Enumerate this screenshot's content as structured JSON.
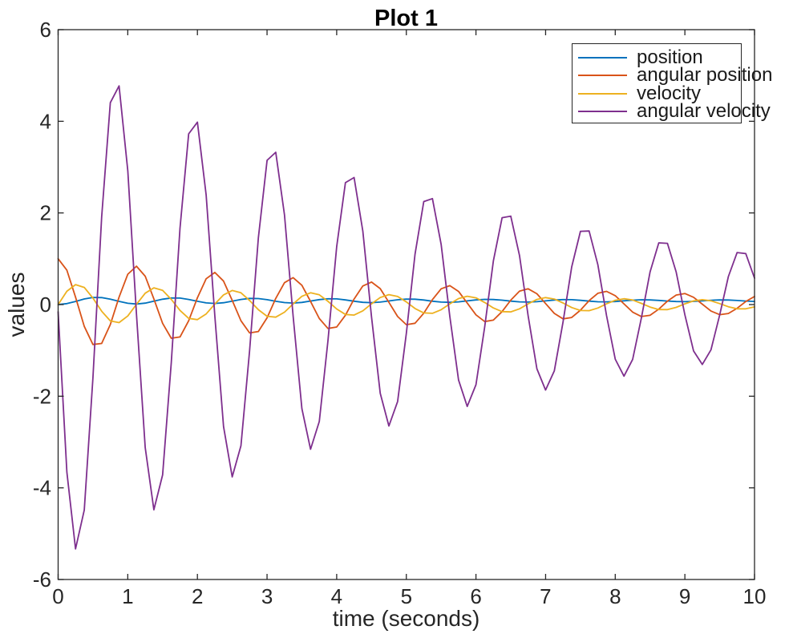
{
  "figure": {
    "title": "Plot 1",
    "xlabel": "time (seconds)",
    "ylabel": "values"
  },
  "axes": {
    "xlim": [
      0,
      10
    ],
    "ylim": [
      -6,
      6
    ],
    "xticks": [
      0,
      1,
      2,
      3,
      4,
      5,
      6,
      7,
      8,
      9,
      10
    ],
    "yticks": [
      -6,
      -4,
      -2,
      0,
      2,
      4,
      6
    ],
    "axis_color": "#262626",
    "background": "#ffffff",
    "box": true,
    "grid": false
  },
  "legend": {
    "position": "top-right",
    "border_color": "#262626",
    "background": "#ffffff"
  },
  "chart_data": {
    "type": "line",
    "title": "Plot 1",
    "xlabel": "time (seconds)",
    "ylabel": "values",
    "xlim": [
      0,
      10
    ],
    "ylim": [
      -6,
      6
    ],
    "grid": false,
    "legend_position": "top-right",
    "x": [
      0,
      0.125,
      0.25,
      0.375,
      0.5,
      0.625,
      0.75,
      0.875,
      1,
      1.125,
      1.25,
      1.375,
      1.5,
      1.625,
      1.75,
      1.875,
      2,
      2.125,
      2.25,
      2.375,
      2.5,
      2.625,
      2.75,
      2.875,
      3,
      3.125,
      3.25,
      3.375,
      3.5,
      3.625,
      3.75,
      3.875,
      4,
      4.125,
      4.25,
      4.375,
      4.5,
      4.625,
      4.75,
      4.875,
      5,
      5.125,
      5.25,
      5.375,
      5.5,
      5.625,
      5.75,
      5.875,
      6,
      6.125,
      6.25,
      6.375,
      6.5,
      6.625,
      6.75,
      6.875,
      7,
      7.125,
      7.25,
      7.375,
      7.5,
      7.625,
      7.75,
      7.875,
      8,
      8.125,
      8.25,
      8.375,
      8.5,
      8.625,
      8.75,
      8.875,
      9,
      9.125,
      9.25,
      9.375,
      9.5,
      9.625,
      9.75,
      9.875,
      10
    ],
    "series": [
      {
        "name": "position",
        "color": "#0072BD",
        "values": [
          0.0,
          0.021,
          0.069,
          0.123,
          0.155,
          0.153,
          0.119,
          0.07,
          0.028,
          0.013,
          0.032,
          0.073,
          0.117,
          0.144,
          0.142,
          0.112,
          0.071,
          0.036,
          0.025,
          0.041,
          0.075,
          0.112,
          0.134,
          0.132,
          0.107,
          0.072,
          0.043,
          0.034,
          0.048,
          0.077,
          0.108,
          0.126,
          0.124,
          0.102,
          0.073,
          0.049,
          0.042,
          0.054,
          0.079,
          0.105,
          0.119,
          0.117,
          0.099,
          0.074,
          0.054,
          0.049,
          0.059,
          0.08,
          0.102,
          0.114,
          0.111,
          0.096,
          0.075,
          0.059,
          0.054,
          0.063,
          0.081,
          0.099,
          0.109,
          0.106,
          0.093,
          0.076,
          0.062,
          0.059,
          0.067,
          0.082,
          0.097,
          0.105,
          0.102,
          0.091,
          0.077,
          0.066,
          0.063,
          0.07,
          0.082,
          0.095,
          0.101,
          0.099,
          0.09,
          0.077,
          0.068
        ]
      },
      {
        "name": "angular position",
        "color": "#D95319",
        "values": [
          1.0,
          0.75,
          0.163,
          -0.476,
          -0.871,
          -0.849,
          -0.436,
          0.163,
          0.663,
          0.838,
          0.62,
          0.124,
          -0.41,
          -0.734,
          -0.707,
          -0.354,
          0.148,
          0.563,
          0.702,
          0.512,
          0.092,
          -0.353,
          -0.619,
          -0.588,
          -0.288,
          0.134,
          0.478,
          0.588,
          0.422,
          0.068,
          -0.304,
          -0.521,
          -0.49,
          -0.233,
          0.121,
          0.406,
          0.492,
          0.348,
          0.049,
          -0.261,
          -0.439,
          -0.407,
          -0.189,
          0.109,
          0.344,
          0.412,
          0.287,
          0.034,
          -0.224,
          -0.37,
          -0.339,
          -0.153,
          0.097,
          0.292,
          0.345,
          0.237,
          0.023,
          -0.192,
          -0.311,
          -0.281,
          -0.123,
          0.086,
          0.247,
          0.288,
          0.195,
          0.015,
          -0.165,
          -0.261,
          -0.234,
          -0.099,
          0.076,
          0.209,
          0.241,
          0.16,
          0.008,
          -0.141,
          -0.22,
          -0.194,
          -0.08,
          0.067,
          0.177
        ]
      },
      {
        "name": "velocity",
        "color": "#EDB120",
        "values": [
          0.0,
          0.291,
          0.436,
          0.374,
          0.142,
          -0.146,
          -0.356,
          -0.394,
          -0.248,
          0.006,
          0.248,
          0.366,
          0.311,
          0.114,
          -0.128,
          -0.301,
          -0.329,
          -0.204,
          0.011,
          0.212,
          0.308,
          0.258,
          0.09,
          -0.112,
          -0.255,
          -0.275,
          -0.167,
          0.014,
          0.181,
          0.258,
          0.214,
          0.072,
          -0.097,
          -0.215,
          -0.229,
          -0.137,
          0.015,
          0.154,
          0.217,
          0.177,
          0.057,
          -0.085,
          -0.182,
          -0.191,
          -0.112,
          0.016,
          0.132,
          0.182,
          0.147,
          0.045,
          -0.074,
          -0.154,
          -0.16,
          -0.092,
          0.016,
          0.112,
          0.153,
          0.121,
          0.035,
          -0.064,
          -0.13,
          -0.133,
          -0.075,
          0.016,
          0.095,
          0.128,
          0.1,
          0.027,
          -0.055,
          -0.109,
          -0.111,
          -0.061,
          0.015,
          0.081,
          0.107,
          0.083,
          0.021,
          -0.048,
          -0.092,
          -0.092,
          -0.05
        ]
      },
      {
        "name": "angular velocity",
        "color": "#7E2F8E",
        "values": [
          -0.157,
          -3.656,
          -5.332,
          -4.483,
          -1.598,
          1.914,
          4.407,
          4.772,
          2.918,
          -0.21,
          -3.121,
          -4.479,
          -3.717,
          -1.269,
          1.668,
          3.726,
          3.982,
          2.391,
          -0.242,
          -2.662,
          -3.761,
          -3.081,
          -1.003,
          1.453,
          3.148,
          3.324,
          1.958,
          -0.258,
          -2.27,
          -3.157,
          -2.553,
          -0.791,
          1.263,
          2.66,
          2.773,
          1.602,
          -0.263,
          -1.934,
          -2.65,
          -2.114,
          -0.623,
          1.098,
          2.247,
          2.313,
          1.31,
          -0.259,
          -1.648,
          -2.223,
          -1.75,
          -0.487,
          0.952,
          1.896,
          1.929,
          1.07,
          -0.249,
          -1.402,
          -1.864,
          -1.448,
          -0.379,
          0.823,
          1.599,
          1.606,
          0.872,
          -0.236,
          -1.192,
          -1.562,
          -1.196,
          -0.292,
          0.711,
          1.347,
          1.337,
          0.71,
          -0.22,
          -1.012,
          -1.307,
          -0.987,
          -0.224,
          0.613,
          1.135,
          1.112,
          0.578
        ]
      }
    ]
  }
}
